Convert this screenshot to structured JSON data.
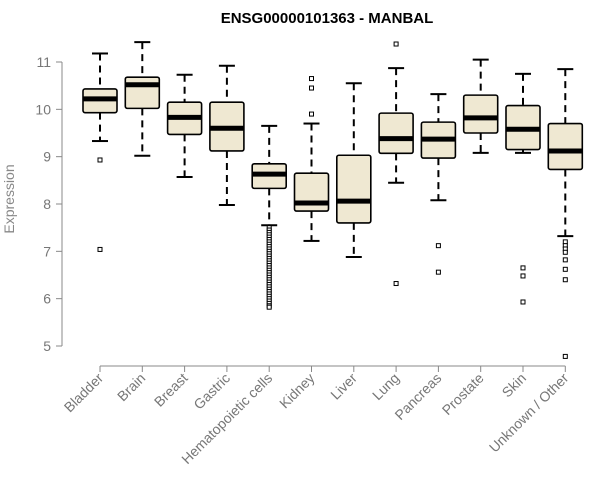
{
  "chart_data": {
    "type": "boxplot",
    "title": "ENSG00000101363 - MANBAL",
    "xlabel": "",
    "ylabel": "Expression",
    "ylim": [
      4.7,
      11.5
    ],
    "yticks": [
      5,
      6,
      7,
      8,
      9,
      10,
      11
    ],
    "box_color": "#efe8d2",
    "categories": [
      "Bladder",
      "Brain",
      "Breast",
      "Gastric",
      "Hematopoietic cells",
      "Kidney",
      "Liver",
      "Lung",
      "Pancreas",
      "Prostate",
      "Skin",
      "Unknown / Other"
    ],
    "series": [
      {
        "name": "Bladder",
        "min": 9.33,
        "q1": 9.93,
        "median": 10.22,
        "q3": 10.43,
        "max": 11.18,
        "outliers": [
          8.93,
          7.04
        ]
      },
      {
        "name": "Brain",
        "min": 9.02,
        "q1": 10.02,
        "median": 10.52,
        "q3": 10.68,
        "max": 11.42,
        "outliers": []
      },
      {
        "name": "Breast",
        "min": 8.57,
        "q1": 9.47,
        "median": 9.83,
        "q3": 10.15,
        "max": 10.73,
        "outliers": []
      },
      {
        "name": "Gastric",
        "min": 7.98,
        "q1": 9.12,
        "median": 9.6,
        "q3": 10.15,
        "max": 10.92,
        "outliers": []
      },
      {
        "name": "Hematopoietic cells",
        "min": 7.55,
        "q1": 8.33,
        "median": 8.63,
        "q3": 8.85,
        "max": 9.65,
        "outliers": [
          7.5,
          7.45,
          7.4,
          7.35,
          7.3,
          7.25,
          7.2,
          7.15,
          7.1,
          7.05,
          7.0,
          6.95,
          6.9,
          6.85,
          6.8,
          6.75,
          6.7,
          6.65,
          6.6,
          6.55,
          6.5,
          6.45,
          6.4,
          6.35,
          6.3,
          6.25,
          6.2,
          6.15,
          6.1,
          6.05,
          6.0,
          5.95,
          5.9,
          5.85,
          5.82
        ]
      },
      {
        "name": "Kidney",
        "min": 7.22,
        "q1": 7.85,
        "median": 8.02,
        "q3": 8.65,
        "max": 9.7,
        "outliers": [
          10.65,
          10.45,
          9.9
        ]
      },
      {
        "name": "Liver",
        "min": 6.88,
        "q1": 7.6,
        "median": 8.06,
        "q3": 9.03,
        "max": 10.55,
        "outliers": []
      },
      {
        "name": "Lung",
        "min": 8.45,
        "q1": 9.07,
        "median": 9.38,
        "q3": 9.92,
        "max": 10.87,
        "outliers": [
          11.38,
          6.32
        ]
      },
      {
        "name": "Pancreas",
        "min": 8.08,
        "q1": 8.97,
        "median": 9.37,
        "q3": 9.73,
        "max": 10.32,
        "outliers": [
          7.12,
          6.56
        ]
      },
      {
        "name": "Prostate",
        "min": 9.08,
        "q1": 9.5,
        "median": 9.82,
        "q3": 10.3,
        "max": 11.05,
        "outliers": []
      },
      {
        "name": "Skin",
        "min": 9.08,
        "q1": 9.15,
        "median": 9.58,
        "q3": 10.08,
        "max": 10.75,
        "outliers": [
          6.65,
          6.48,
          5.93
        ]
      },
      {
        "name": "Unknown / Other",
        "min": 7.32,
        "q1": 8.73,
        "median": 9.12,
        "q3": 9.7,
        "max": 10.85,
        "outliers": [
          7.2,
          7.12,
          7.05,
          6.98,
          6.82,
          6.62,
          6.4,
          4.78
        ]
      }
    ]
  }
}
